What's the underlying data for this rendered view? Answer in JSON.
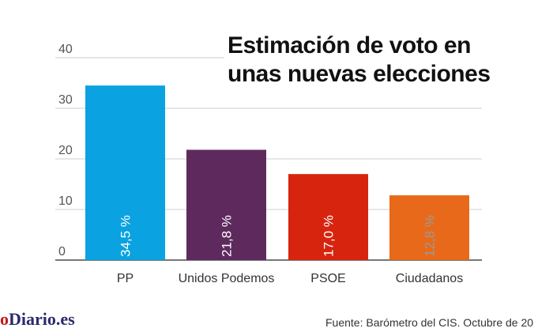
{
  "chart_data": {
    "type": "bar",
    "title": "Estimación de voto en unas nuevas elecciones",
    "title_lines": [
      "Estimación de voto en",
      "unas nuevas elecciones"
    ],
    "categories": [
      "PP",
      "Unidos Podemos",
      "PSOE",
      "Ciudadanos"
    ],
    "values": [
      34.5,
      21.8,
      17.0,
      12.8
    ],
    "data_labels": [
      "34,5 %",
      "21,8 %",
      "17,0 %",
      "12,8 %"
    ],
    "colors": [
      "#0aa2e0",
      "#5e2a5e",
      "#d7240f",
      "#e8691a"
    ],
    "label_colors": [
      "#ffffff",
      "#ffffff",
      "#ffffff",
      "#9a9a9a"
    ],
    "yticks": [
      0,
      10,
      20,
      30,
      40
    ],
    "ylim": [
      0,
      40
    ],
    "xlabel": "",
    "ylabel": "",
    "grid": true
  },
  "footer": {
    "logo_part1": "o",
    "logo_part2": "Diario.es",
    "source": "Fuente: Barómetro del CIS. Octubre de 20"
  }
}
